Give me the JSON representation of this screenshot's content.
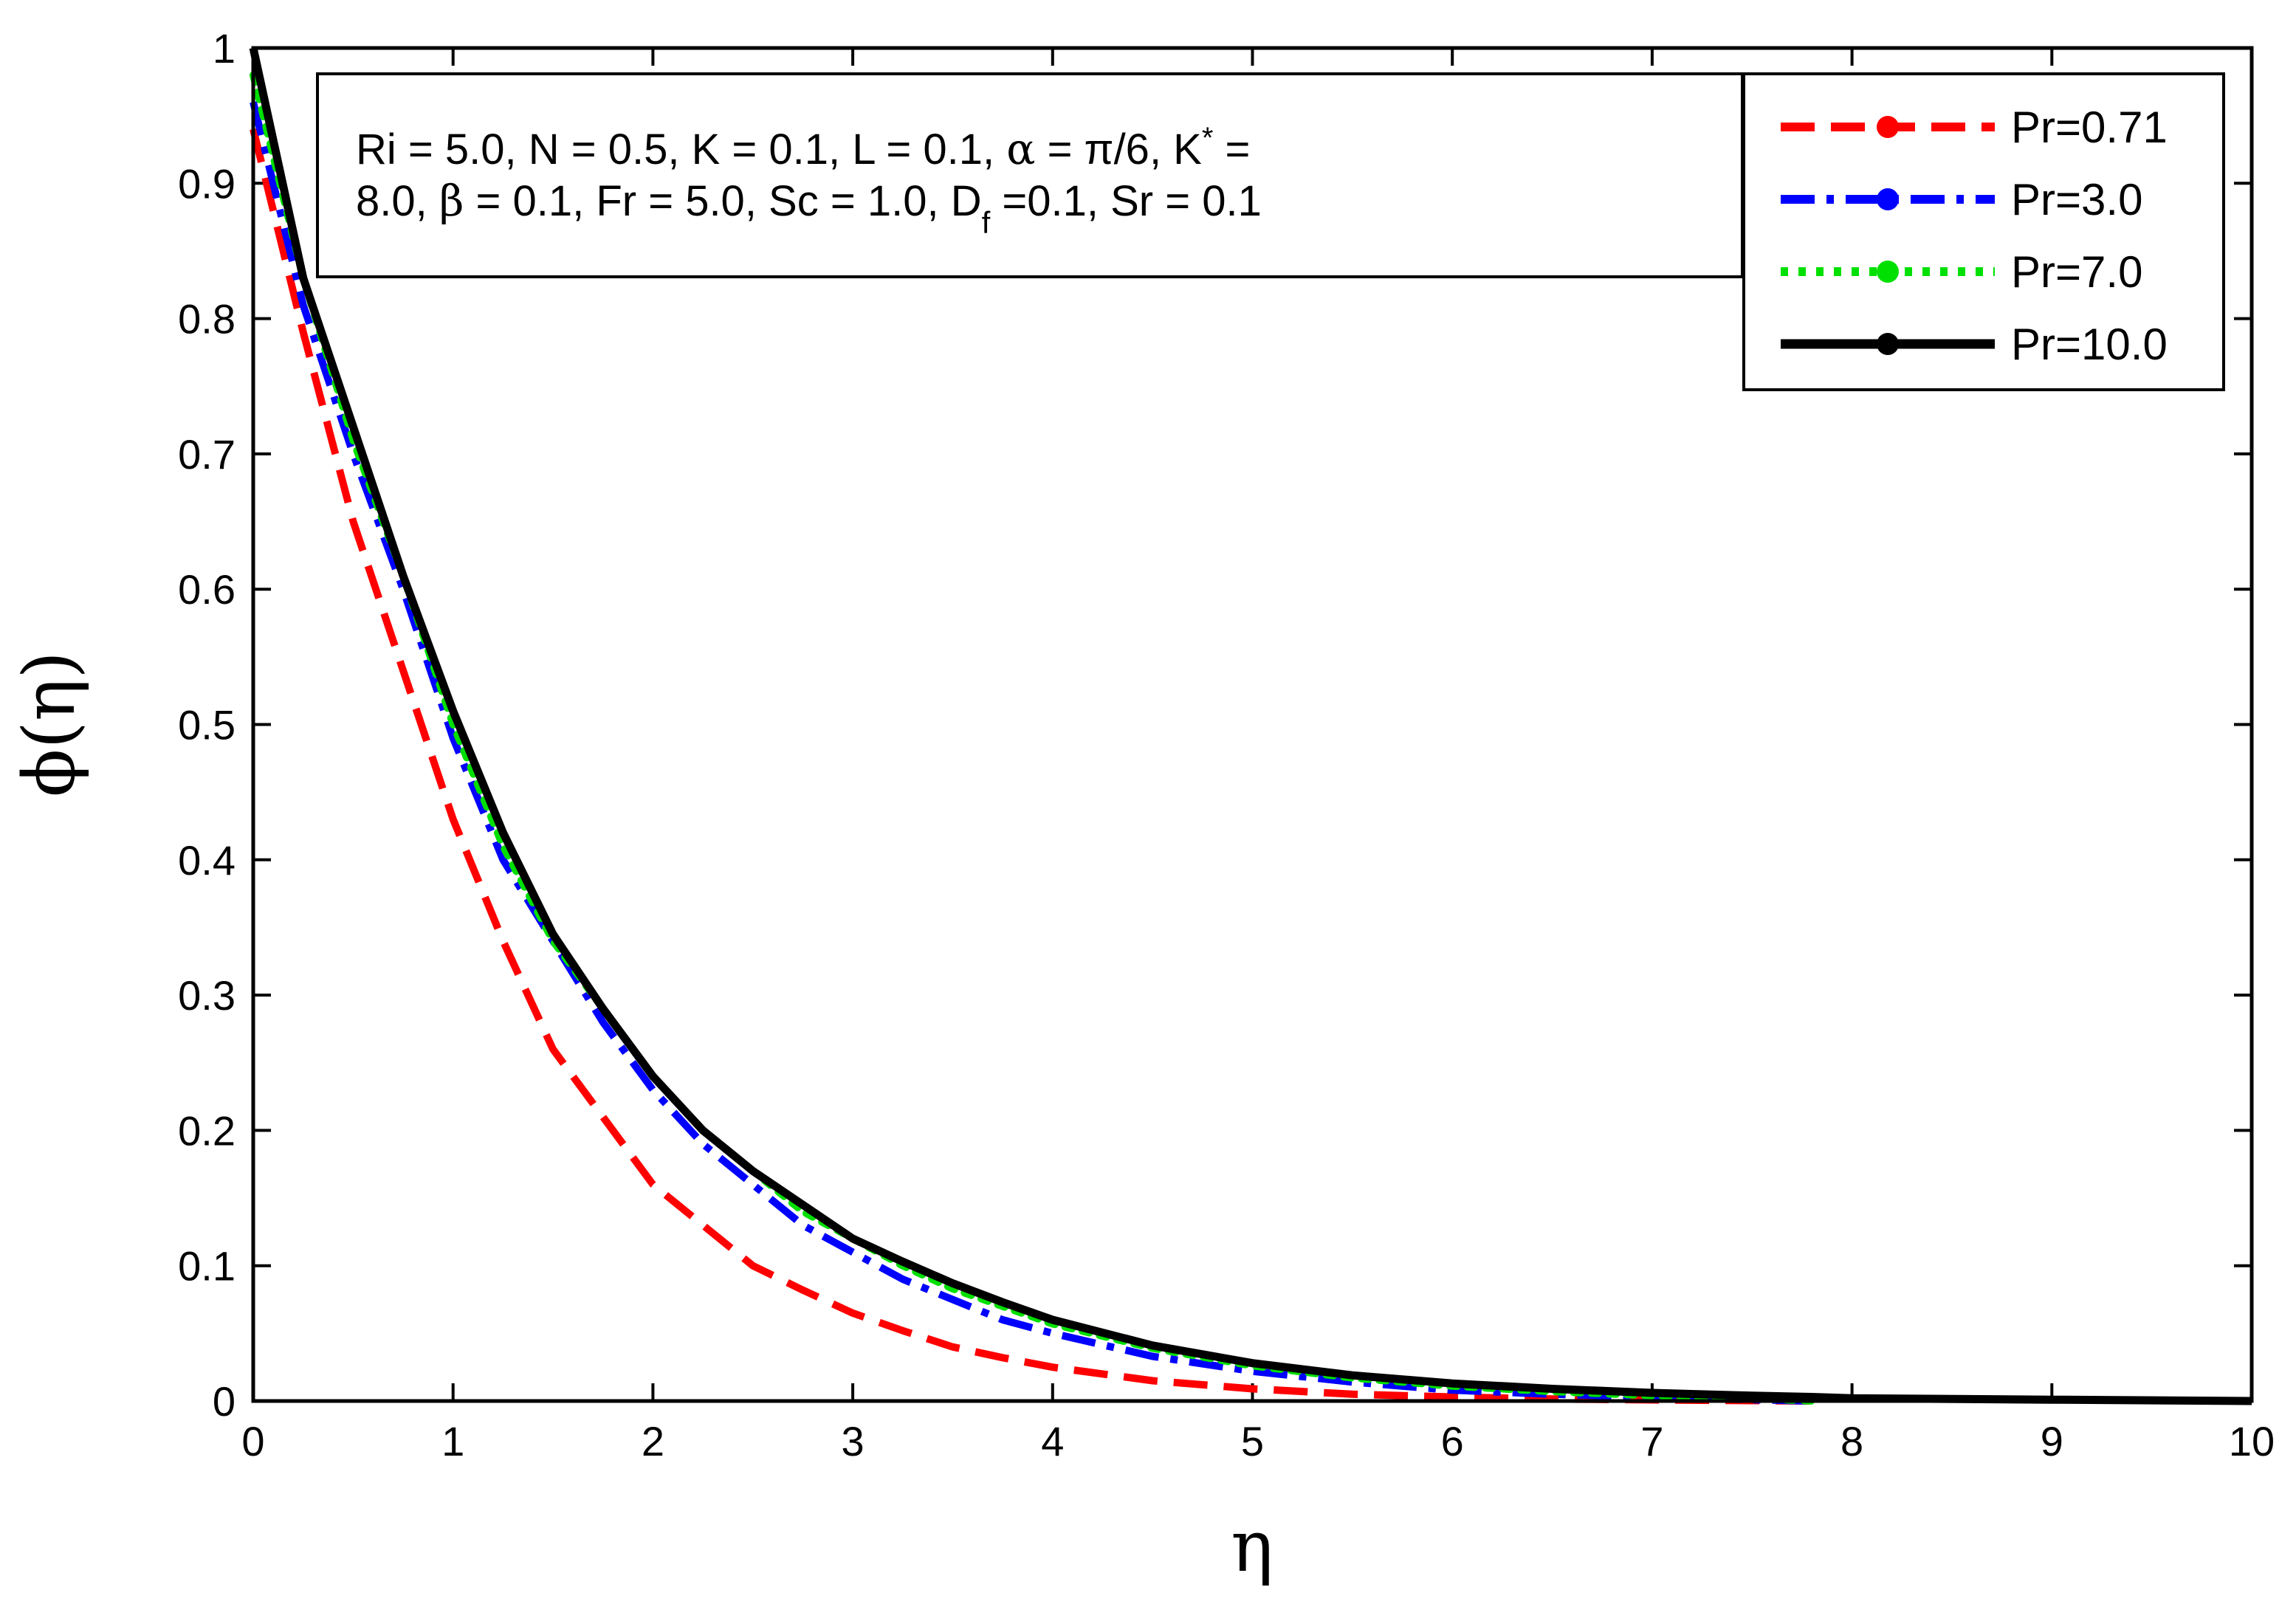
{
  "chart_data": {
    "type": "line",
    "title": "",
    "xlabel": "η",
    "ylabel": "ϕ(η)",
    "xlim": [
      0,
      10
    ],
    "ylim": [
      0,
      1
    ],
    "xticks": [
      "0",
      "1",
      "2",
      "3",
      "4",
      "5",
      "6",
      "7",
      "8",
      "9",
      "10"
    ],
    "yticks": [
      "0",
      "0.1",
      "0.2",
      "0.3",
      "0.4",
      "0.5",
      "0.6",
      "0.7",
      "0.8",
      "0.9",
      "1"
    ],
    "grid": false,
    "legend_position": "top-right",
    "annotation": {
      "line1_a": "Ri = 5.0, N = 0.5, K = 0.1, L = 0.1, ",
      "line1_alpha": "α",
      "line1_b": " = π/6, K",
      "line1_star": "*",
      "line1_c": " =",
      "line2_a": "8.0, ",
      "line2_beta": "β",
      "line2_b": " = 0.1, Fr = 5.0, Sc = 1.0, D",
      "line2_sub": "f",
      "line2_c": " =0.1, Sr = 0.1"
    },
    "series": [
      {
        "name": "Pr=0.71",
        "color": "#ff0000",
        "style": "dashed",
        "x": [
          0,
          0.25,
          0.5,
          0.75,
          1.0,
          1.25,
          1.5,
          1.75,
          2.0,
          2.25,
          2.5,
          2.75,
          3.0,
          3.25,
          3.5,
          3.75,
          4.0,
          4.5,
          5.0,
          5.5,
          6.0,
          6.5,
          7.0,
          7.5,
          7.8
        ],
        "y": [
          0.94,
          0.79,
          0.65,
          0.54,
          0.43,
          0.34,
          0.26,
          0.21,
          0.16,
          0.13,
          0.1,
          0.082,
          0.065,
          0.052,
          0.04,
          0.032,
          0.025,
          0.015,
          0.009,
          0.005,
          0.003,
          0.0015,
          0.0008,
          0.0003,
          0
        ]
      },
      {
        "name": "Pr=3.0",
        "color": "#0000ff",
        "style": "dashdot",
        "x": [
          0,
          0.25,
          0.5,
          0.75,
          1.0,
          1.25,
          1.5,
          1.75,
          2.0,
          2.25,
          2.5,
          2.75,
          3.0,
          3.25,
          3.5,
          3.75,
          4.0,
          4.5,
          5.0,
          5.5,
          6.0,
          6.5,
          7.0,
          7.5,
          7.8
        ],
        "y": [
          0.96,
          0.81,
          0.7,
          0.6,
          0.49,
          0.4,
          0.34,
          0.28,
          0.23,
          0.19,
          0.16,
          0.13,
          0.11,
          0.09,
          0.075,
          0.06,
          0.05,
          0.033,
          0.022,
          0.014,
          0.008,
          0.005,
          0.003,
          0.001,
          0
        ]
      },
      {
        "name": "Pr=7.0",
        "color": "#00e000",
        "style": "dotted",
        "x": [
          0,
          0.25,
          0.5,
          0.75,
          1.0,
          1.25,
          1.5,
          1.75,
          2.0,
          2.25,
          2.5,
          2.75,
          3.0,
          3.25,
          3.5,
          3.75,
          4.0,
          4.5,
          5.0,
          5.5,
          6.0,
          6.5,
          7.0,
          7.5,
          7.8
        ],
        "y": [
          0.98,
          0.83,
          0.71,
          0.61,
          0.5,
          0.41,
          0.34,
          0.29,
          0.24,
          0.2,
          0.17,
          0.14,
          0.12,
          0.1,
          0.083,
          0.07,
          0.057,
          0.039,
          0.026,
          0.017,
          0.011,
          0.007,
          0.004,
          0.002,
          0
        ]
      },
      {
        "name": "Pr=10.0",
        "color": "#000000",
        "style": "solid",
        "x": [
          0,
          0.25,
          0.5,
          0.75,
          1.0,
          1.25,
          1.5,
          1.75,
          2.0,
          2.25,
          2.5,
          2.75,
          3.0,
          3.25,
          3.5,
          3.75,
          4.0,
          4.5,
          5.0,
          5.5,
          6.0,
          6.5,
          7.0,
          7.5,
          7.8,
          8.0,
          9.0,
          10.0
        ],
        "y": [
          1.0,
          0.83,
          0.72,
          0.61,
          0.51,
          0.42,
          0.345,
          0.29,
          0.24,
          0.2,
          0.17,
          0.145,
          0.12,
          0.103,
          0.087,
          0.073,
          0.06,
          0.041,
          0.028,
          0.019,
          0.013,
          0.009,
          0.006,
          0.004,
          0.003,
          0.002,
          0.001,
          0
        ]
      }
    ]
  }
}
